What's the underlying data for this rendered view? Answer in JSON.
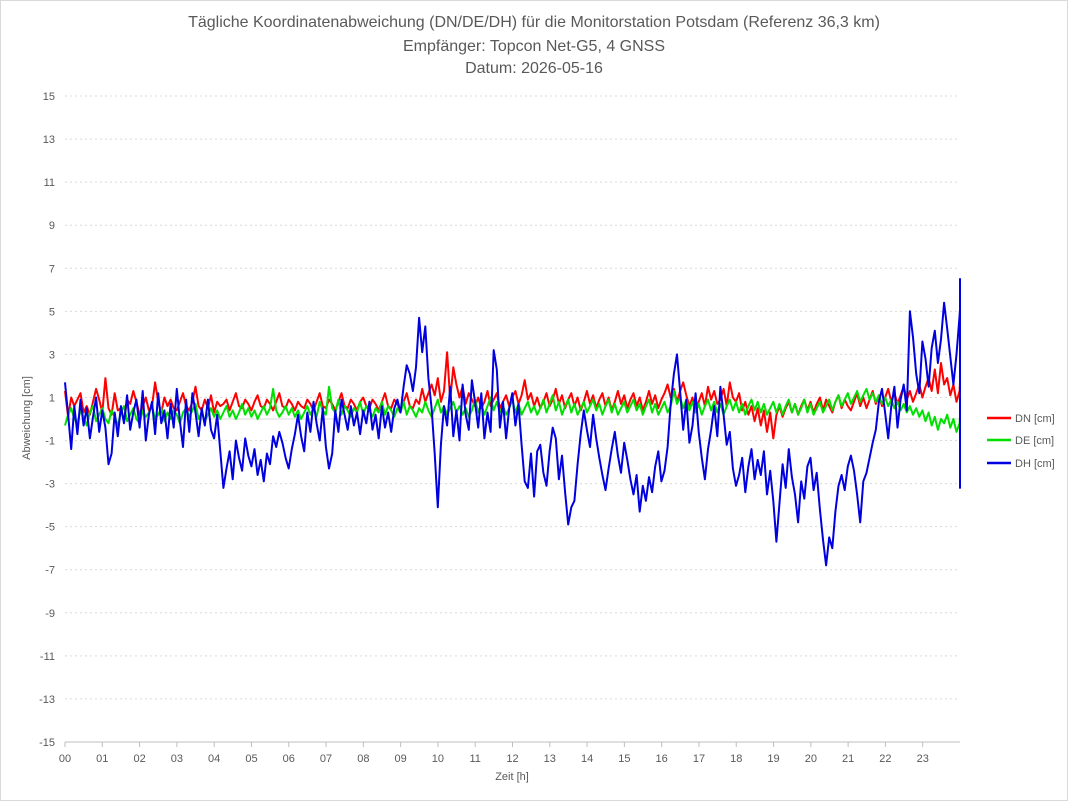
{
  "chart_data": {
    "type": "line",
    "title": "Tägliche Koordinatenabweichung (DN/DE/DH) für die Monitorstation Potsdam (Referenz 36,3 km)",
    "subtitle": "Empfänger: Topcon Net-G5, 4 GNSS",
    "subtitle2": "Datum: 2026-05-16",
    "xlabel": "Zeit [h]",
    "ylabel": "Abweichung [cm]",
    "ylim": [
      -15,
      15
    ],
    "xlim": [
      0,
      24
    ],
    "yticks": [
      "15",
      "13",
      "11",
      "9",
      "7",
      "5",
      "3",
      "1",
      "-1",
      "-3",
      "-5",
      "-7",
      "-9",
      "-11",
      "-13",
      "-15"
    ],
    "xticks": [
      "00",
      "01",
      "02",
      "03",
      "04",
      "05",
      "06",
      "07",
      "08",
      "09",
      "10",
      "11",
      "12",
      "13",
      "14",
      "15",
      "16",
      "17",
      "18",
      "19",
      "20",
      "21",
      "22",
      "23"
    ],
    "grid": "horizontal-dotted",
    "legend_position": "right",
    "sample_interval_h": 0.0833,
    "series": [
      {
        "name": "DN [cm]",
        "color": "#ff0000",
        "values": [
          1.3,
          0.1,
          1.0,
          0.6,
          0.9,
          1.2,
          0.3,
          0.6,
          0.2,
          0.8,
          1.4,
          0.9,
          0.3,
          1.9,
          0.5,
          0.2,
          1.2,
          0.4,
          0.5,
          -0.1,
          0.9,
          0.7,
          1.3,
          0.8,
          0.2,
          0.6,
          1.0,
          0.4,
          0.6,
          1.7,
          0.8,
          0.3,
          1.0,
          0.6,
          0.9,
          0.5,
          0.4,
          0.8,
          1.2,
          0.6,
          0.4,
          0.8,
          1.5,
          0.6,
          0.4,
          0.9,
          0.5,
          1.1,
          0.3,
          0.8,
          0.6,
          0.7,
          0.9,
          0.4,
          0.8,
          1.2,
          0.6,
          0.5,
          0.9,
          0.7,
          0.4,
          0.8,
          1.1,
          0.6,
          0.5,
          0.9,
          0.7,
          0.4,
          0.8,
          1.2,
          0.6,
          0.5,
          0.9,
          0.7,
          0.4,
          0.8,
          0.6,
          0.5,
          0.9,
          0.7,
          0.4,
          0.8,
          1.2,
          0.6,
          0.5,
          0.9,
          0.7,
          0.4,
          0.8,
          1.2,
          0.6,
          0.5,
          0.9,
          0.7,
          0.4,
          0.8,
          1.0,
          0.6,
          0.5,
          0.9,
          0.7,
          0.4,
          0.8,
          1.2,
          0.6,
          0.5,
          0.9,
          0.7,
          0.4,
          0.8,
          1.2,
          0.6,
          0.5,
          0.9,
          0.7,
          1.4,
          0.8,
          1.2,
          1.6,
          1.1,
          1.9,
          0.8,
          1.3,
          3.1,
          0.9,
          2.4,
          1.6,
          1.0,
          1.5,
          0.7,
          1.2,
          0.9,
          0.6,
          1.0,
          0.5,
          0.8,
          1.3,
          0.6,
          0.9,
          1.2,
          0.5,
          0.8,
          1.1,
          0.6,
          1.0,
          1.3,
          0.7,
          1.1,
          1.8,
          0.9,
          1.2,
          0.6,
          1.0,
          0.5,
          0.8,
          1.2,
          0.6,
          0.9,
          1.4,
          0.7,
          1.1,
          0.5,
          0.9,
          1.2,
          0.6,
          1.0,
          0.4,
          0.8,
          1.3,
          0.7,
          1.1,
          0.5,
          0.9,
          1.2,
          0.6,
          1.0,
          0.4,
          0.8,
          1.3,
          0.7,
          1.1,
          0.5,
          0.9,
          1.2,
          0.6,
          1.0,
          0.4,
          0.8,
          1.3,
          0.7,
          1.1,
          0.5,
          0.9,
          1.2,
          1.6,
          1.0,
          1.4,
          0.8,
          1.3,
          1.7,
          1.1,
          0.6,
          1.0,
          0.4,
          0.8,
          1.2,
          0.6,
          1.5,
          0.9,
          1.3,
          0.7,
          0.9,
          1.4,
          0.6,
          1.7,
          1.0,
          0.8,
          1.2,
          0.4,
          0.8,
          0.2,
          0.6,
          -0.1,
          0.5,
          -0.3,
          0.4,
          -0.6,
          0.3,
          -0.9,
          0.2,
          0.6,
          0.1,
          0.5,
          0.8,
          0.3,
          0.7,
          0.2,
          0.6,
          0.9,
          0.4,
          0.8,
          0.3,
          0.7,
          1.0,
          0.4,
          0.9,
          0.6,
          0.3,
          0.8,
          1.1,
          0.5,
          0.9,
          0.6,
          0.4,
          0.8,
          1.2,
          0.6,
          1.0,
          0.5,
          0.9,
          1.3,
          0.7,
          1.1,
          0.6,
          1.0,
          1.4,
          0.8,
          1.2,
          0.7,
          1.1,
          1.5,
          0.9,
          1.3,
          0.8,
          1.2,
          1.6,
          1.0,
          1.5,
          1.9,
          1.3,
          2.3,
          1.2,
          2.6,
          1.6,
          1.9,
          1.1,
          1.6,
          0.8,
          1.3,
          1.7,
          1.0,
          0.8,
          1.4,
          1.2,
          0.7,
          1.1,
          0.9,
          1.3,
          0.8,
          1.2,
          0.6,
          1.0,
          0.7,
          0.3,
          0.8,
          0.5,
          1.0,
          0.6,
          0.3,
          0.7,
          0.4,
          1.0,
          0.6,
          0.2,
          0.8,
          0.5,
          1.1,
          0.4,
          0.9,
          0.3,
          0.8,
          1.3,
          0.5,
          1.0,
          0.3,
          1.2,
          0.5,
          0.9,
          0.4,
          0.8,
          1.2,
          0.3,
          0.7,
          0.4,
          0.9,
          0.5,
          1.3,
          0.6,
          1.0,
          0.4,
          0.8,
          1.2,
          0.3,
          0.6,
          0.9,
          0.2,
          0.7,
          0.4,
          0.8,
          1.1,
          0.3,
          0.9,
          2.0,
          0.5,
          1.4
        ]
      },
      {
        "name": "DE [cm]",
        "color": "#00e000",
        "values": [
          -0.3,
          0.2,
          0.5,
          0.0,
          -0.2,
          0.4,
          0.1,
          -0.3,
          0.3,
          0.6,
          -0.1,
          0.2,
          0.5,
          0.0,
          -0.2,
          0.4,
          0.1,
          -0.3,
          0.3,
          0.6,
          -0.1,
          0.2,
          0.5,
          0.0,
          -0.2,
          0.4,
          0.1,
          0.3,
          0.6,
          0.0,
          0.2,
          0.5,
          -0.1,
          0.3,
          0.0,
          0.4,
          0.2,
          -0.2,
          0.3,
          0.5,
          0.1,
          0.4,
          0.7,
          0.0,
          0.3,
          -0.1,
          0.2,
          0.5,
          0.1,
          0.4,
          0.0,
          0.3,
          0.6,
          0.1,
          0.4,
          0.0,
          0.3,
          0.7,
          0.2,
          0.5,
          0.1,
          0.4,
          0.0,
          0.3,
          0.6,
          0.2,
          0.5,
          1.4,
          0.4,
          0.1,
          0.3,
          0.6,
          0.2,
          0.5,
          0.1,
          0.4,
          0.0,
          0.3,
          0.6,
          0.2,
          0.5,
          0.1,
          0.8,
          0.4,
          0.2,
          1.5,
          0.5,
          0.3,
          0.9,
          0.2,
          0.6,
          0.4,
          0.1,
          0.5,
          0.3,
          0.8,
          0.2,
          0.6,
          0.4,
          0.1,
          0.5,
          0.3,
          0.8,
          0.2,
          0.6,
          0.4,
          0.1,
          0.5,
          0.3,
          0.8,
          0.2,
          0.6,
          0.4,
          0.1,
          0.5,
          0.3,
          0.8,
          0.4,
          0.1,
          0.5,
          0.9,
          0.3,
          0.6,
          0.2,
          0.5,
          0.8,
          0.3,
          0.6,
          0.2,
          0.5,
          0.1,
          0.4,
          0.9,
          0.3,
          0.7,
          0.2,
          0.6,
          1.0,
          0.4,
          0.8,
          0.3,
          0.6,
          0.2,
          0.5,
          0.9,
          0.3,
          0.7,
          0.2,
          0.5,
          0.8,
          0.3,
          0.6,
          0.2,
          0.5,
          0.9,
          0.3,
          0.7,
          1.1,
          0.4,
          0.8,
          0.2,
          0.6,
          0.9,
          0.3,
          0.7,
          0.2,
          0.5,
          0.8,
          0.3,
          0.6,
          0.9,
          0.4,
          0.7,
          0.2,
          0.6,
          0.9,
          0.3,
          0.7,
          0.2,
          0.5,
          0.8,
          0.3,
          0.6,
          0.9,
          0.4,
          0.7,
          0.2,
          0.6,
          0.9,
          0.3,
          0.7,
          0.2,
          0.5,
          0.8,
          0.3,
          0.6,
          1.3,
          0.7,
          1.0,
          0.5,
          0.9,
          0.4,
          0.8,
          0.3,
          0.7,
          0.2,
          0.6,
          0.9,
          0.4,
          0.8,
          0.3,
          0.7,
          0.2,
          0.6,
          0.9,
          0.4,
          0.8,
          0.3,
          0.7,
          0.2,
          0.6,
          0.9,
          0.4,
          0.8,
          0.3,
          0.7,
          0.2,
          0.5,
          0.8,
          0.3,
          0.7,
          0.2,
          0.6,
          0.9,
          0.3,
          0.7,
          0.2,
          0.5,
          0.9,
          0.3,
          0.7,
          0.2,
          0.5,
          0.8,
          0.3,
          0.6,
          0.9,
          0.4,
          0.8,
          1.1,
          0.6,
          0.9,
          1.2,
          0.7,
          1.0,
          1.3,
          0.8,
          1.1,
          1.4,
          0.9,
          1.2,
          0.8,
          1.1,
          0.7,
          1.0,
          0.6,
          0.9,
          0.5,
          0.8,
          0.4,
          0.7,
          0.3,
          0.6,
          0.2,
          0.5,
          0.1,
          0.4,
          -0.1,
          0.3,
          -0.3,
          0.1,
          -0.5,
          0.0,
          -0.2,
          0.2,
          -0.4,
          0.0,
          -0.6,
          -0.2,
          0.1,
          -0.5,
          -0.3,
          -0.8,
          -0.4,
          -1.0,
          -0.5,
          -1.3,
          -0.8,
          -1.1,
          -1.6,
          -1.2,
          -2.2,
          -1.5,
          -1.8,
          -1.1,
          -0.8,
          -1.2,
          -0.6,
          -0.9,
          -0.4,
          -0.7,
          -0.3,
          -0.5,
          -0.2,
          -0.4,
          -0.1,
          -0.3,
          -0.6,
          -0.2,
          -0.5,
          -0.9,
          -0.4,
          -0.7,
          -0.3,
          -0.6,
          -0.2,
          -0.5,
          -0.8,
          -0.4,
          -0.7,
          -1.1,
          -0.6,
          -0.9,
          -0.5,
          -0.8,
          -0.4,
          -0.6,
          -0.3,
          -0.5,
          -0.2,
          -0.4,
          -0.1,
          -0.3,
          -0.6,
          -0.2,
          -0.5,
          -0.9,
          -0.4,
          -0.7,
          -0.3,
          -0.6,
          0.0,
          -0.4,
          0.1,
          -0.2,
          0.3,
          0.0,
          0.4,
          0.1,
          0.5,
          0.2,
          -0.2
        ]
      },
      {
        "name": "DH [cm]",
        "color": "#0000e0",
        "values": [
          1.7,
          0.2,
          -1.4,
          0.6,
          -0.7,
          0.9,
          -0.3,
          0.5,
          -0.9,
          0.1,
          1.0,
          -0.6,
          0.4,
          -0.4,
          -2.1,
          -1.6,
          0.3,
          -0.8,
          0.6,
          -0.2,
          1.1,
          -0.5,
          0.3,
          0.9,
          -0.4,
          1.3,
          -1.0,
          0.2,
          0.8,
          -0.7,
          1.2,
          -0.2,
          0.4,
          -0.9,
          0.7,
          -0.4,
          1.4,
          -0.1,
          -1.3,
          0.9,
          -0.6,
          1.2,
          0.3,
          -0.8,
          0.5,
          -0.3,
          0.9,
          -0.5,
          -0.9,
          0.2,
          -1.5,
          -3.2,
          -2.3,
          -1.5,
          -2.8,
          -1.0,
          -1.8,
          -2.4,
          -0.9,
          -1.7,
          -2.2,
          -1.4,
          -2.6,
          -1.9,
          -2.9,
          -1.6,
          -2.1,
          -0.8,
          -1.3,
          -0.6,
          -1.1,
          -1.8,
          -2.3,
          -1.4,
          -0.7,
          0.2,
          -0.8,
          -1.5,
          0.3,
          -0.6,
          0.8,
          -0.2,
          -1.0,
          0.5,
          -1.3,
          -2.3,
          -1.6,
          0.4,
          -0.6,
          0.9,
          0.2,
          -0.5,
          0.6,
          -0.3,
          0.3,
          -0.7,
          0.4,
          -0.2,
          0.8,
          -0.5,
          0.2,
          -0.9,
          0.6,
          -0.4,
          0.3,
          -0.6,
          0.5,
          0.9,
          0.3,
          1.5,
          2.5,
          2.1,
          1.3,
          2.4,
          4.7,
          3.1,
          4.3,
          1.9,
          0.5,
          -1.6,
          -4.1,
          -1.2,
          0.6,
          -0.3,
          1.5,
          -0.8,
          0.4,
          -1.0,
          1.6,
          0.2,
          -0.5,
          1.8,
          0.8,
          -0.4,
          1.2,
          -0.9,
          0.3,
          -0.6,
          3.2,
          2.3,
          -0.4,
          0.8,
          -0.9,
          0.5,
          1.2,
          -0.3,
          0.7,
          -1.2,
          -2.9,
          -3.2,
          -1.6,
          -3.6,
          -1.5,
          -1.2,
          -2.5,
          -3.1,
          -1.5,
          -0.4,
          -0.9,
          -2.8,
          -1.7,
          -3.4,
          -4.9,
          -4.1,
          -3.8,
          -2.1,
          -0.7,
          0.4,
          -0.5,
          -1.3,
          0.2,
          -0.9,
          -1.8,
          -2.6,
          -3.3,
          -2.3,
          -1.4,
          -0.6,
          -1.7,
          -2.5,
          -1.1,
          -1.9,
          -2.8,
          -3.5,
          -2.6,
          -4.3,
          -3.1,
          -3.8,
          -2.7,
          -3.4,
          -2.2,
          -1.5,
          -2.9,
          -2.4,
          -1.3,
          0.7,
          2.1,
          3.0,
          1.3,
          -0.5,
          0.9,
          -1.1,
          -0.3,
          1.2,
          -0.6,
          -1.8,
          -2.8,
          -1.4,
          -0.5,
          0.6,
          -0.8,
          1.5,
          0.2,
          -1.2,
          -0.6,
          -2.3,
          -3.1,
          -2.6,
          -1.8,
          -3.4,
          -2.2,
          -1.4,
          -2.8,
          -1.9,
          -2.6,
          -1.5,
          -3.5,
          -2.4,
          -3.8,
          -5.7,
          -3.9,
          -2.1,
          -3.2,
          -1.4,
          -2.7,
          -3.5,
          -4.8,
          -2.9,
          -3.7,
          -2.2,
          -1.8,
          -3.3,
          -2.5,
          -4.2,
          -5.6,
          -6.8,
          -5.5,
          -6.0,
          -4.3,
          -3.1,
          -2.6,
          -3.3,
          -2.2,
          -1.7,
          -2.4,
          -3.5,
          -4.8,
          -2.9,
          -2.5,
          -1.8,
          -1.1,
          -0.5,
          0.8,
          1.4,
          0.3,
          -0.9,
          0.6,
          1.5,
          -0.4,
          0.9,
          1.6,
          0.4,
          5.0,
          3.8,
          2.1,
          1.2,
          3.6,
          2.8,
          1.5,
          3.3,
          4.1,
          2.6,
          3.7,
          5.4,
          4.2,
          2.9,
          1.6,
          3.0,
          4.8,
          5.1,
          5.5,
          2.5,
          3.1,
          0.5,
          -0.8,
          6.5,
          3.2,
          1.8,
          -0.6,
          0.9,
          1.5,
          -0.9,
          3.4,
          -0.3,
          0.8,
          -1.2,
          -0.4,
          0.6,
          -0.8,
          0.4,
          -1.3,
          0.2,
          0.7,
          -0.5,
          0.3,
          -1.0,
          -1.8,
          -0.7,
          0.1,
          -0.9,
          -1.6,
          -0.8,
          -3.2,
          -1.5,
          -2.1,
          -1.4,
          -2.6,
          -1.3,
          -0.7,
          -2.4,
          -3.0,
          -3.1,
          -2.3,
          -1.5,
          -2.1,
          -0.8,
          -0.3,
          -0.9,
          -1.4
        ]
      }
    ]
  }
}
